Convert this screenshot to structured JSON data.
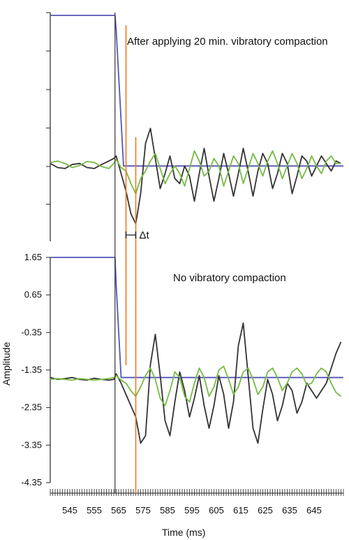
{
  "chart_data": {
    "type": "line",
    "xlabel": "Time (ms)",
    "ylabel": "Amplitude",
    "xlim": [
      537,
      657
    ],
    "x_ticks": [
      545,
      555,
      565,
      575,
      585,
      595,
      605,
      615,
      625,
      635,
      645
    ],
    "y_ticks": [
      1.65,
      0.65,
      -0.35,
      -1.35,
      -2.35,
      -3.35,
      -4.35
    ],
    "y_tick_labels": [
      "1.65",
      "0.65",
      "-0.35",
      "-1.35",
      "-2.35",
      "-3.35",
      "-4.35"
    ],
    "top_panel": {
      "title": "After applying 20 min. vibratory compaction",
      "ylim": [
        -2.85,
        1.65
      ],
      "series": [
        {
          "color": "#5555bb",
          "x": [
            537,
            563.5,
            564,
            567,
            657
          ],
          "y": [
            1.65,
            1.65,
            1.35,
            -1.35,
            -1.35
          ]
        },
        {
          "color": "#333333",
          "x": [
            537,
            540,
            543,
            546,
            549,
            552,
            555,
            558,
            561,
            563,
            564,
            566,
            568,
            570,
            572,
            574,
            576,
            578,
            580,
            582,
            584,
            586,
            588,
            590,
            592,
            594,
            596,
            598,
            600,
            602,
            604,
            606,
            608,
            610,
            612,
            614,
            616,
            618,
            620,
            622,
            624,
            626,
            628,
            630,
            632,
            634,
            636,
            638,
            640,
            642,
            644,
            646,
            648,
            650,
            652,
            654,
            656
          ],
          "y": [
            -1.3,
            -1.38,
            -1.4,
            -1.32,
            -1.3,
            -1.38,
            -1.4,
            -1.32,
            -1.25,
            -1.2,
            -1.15,
            -1.5,
            -1.85,
            -2.3,
            -2.5,
            -1.9,
            -0.9,
            -0.6,
            -1.2,
            -1.8,
            -1.5,
            -1.15,
            -1.6,
            -1.7,
            -1.35,
            -1.55,
            -2.05,
            -1.5,
            -1.0,
            -1.55,
            -2.05,
            -1.6,
            -1.1,
            -1.5,
            -1.95,
            -1.5,
            -1.0,
            -1.45,
            -1.95,
            -1.45,
            -1.1,
            -1.3,
            -1.8,
            -1.5,
            -1.1,
            -1.3,
            -1.9,
            -1.55,
            -1.15,
            -1.25,
            -1.55,
            -1.35,
            -1.15,
            -1.3,
            -1.45,
            -1.25,
            -1.3
          ]
        },
        {
          "color": "#77bb44",
          "x": [
            537,
            540,
            543,
            546,
            549,
            552,
            555,
            558,
            561,
            563,
            564,
            566,
            568,
            570,
            572,
            574,
            576,
            578,
            580,
            582,
            584,
            586,
            588,
            590,
            592,
            594,
            596,
            598,
            600,
            602,
            604,
            606,
            608,
            610,
            612,
            614,
            616,
            618,
            620,
            622,
            624,
            626,
            628,
            630,
            632,
            634,
            636,
            638,
            640,
            642,
            644,
            646,
            648,
            650,
            652,
            654,
            656
          ],
          "y": [
            -1.28,
            -1.25,
            -1.3,
            -1.38,
            -1.34,
            -1.26,
            -1.28,
            -1.36,
            -1.4,
            -1.3,
            -1.22,
            -1.38,
            -1.45,
            -1.7,
            -1.9,
            -1.6,
            -1.45,
            -1.25,
            -1.1,
            -1.4,
            -1.7,
            -1.5,
            -1.35,
            -1.5,
            -1.75,
            -1.4,
            -1.05,
            -1.25,
            -1.55,
            -1.45,
            -1.2,
            -1.35,
            -1.75,
            -1.45,
            -1.15,
            -1.3,
            -1.7,
            -1.4,
            -1.1,
            -1.3,
            -1.55,
            -1.25,
            -1.05,
            -1.3,
            -1.6,
            -1.35,
            -1.1,
            -1.3,
            -1.6,
            -1.4,
            -1.15,
            -1.35,
            -1.5,
            -1.25,
            -1.15,
            -1.3,
            -1.3
          ]
        }
      ]
    },
    "bottom_panel": {
      "title": "No vibratory compaction",
      "ylim": [
        -4.35,
        1.65
      ],
      "series": [
        {
          "color": "#5555bb",
          "x": [
            537,
            563.5,
            564,
            566,
            657
          ],
          "y": [
            1.65,
            1.65,
            0.9,
            -1.55,
            -1.55
          ]
        },
        {
          "color": "#333333",
          "x": [
            537,
            540,
            543,
            546,
            549,
            552,
            555,
            558,
            561,
            563,
            564,
            566,
            568,
            570,
            572,
            574,
            576,
            578,
            580,
            582,
            584,
            586,
            588,
            590,
            592,
            594,
            596,
            598,
            600,
            602,
            604,
            606,
            608,
            610,
            612,
            614,
            616,
            618,
            620,
            622,
            624,
            626,
            628,
            630,
            632,
            634,
            636,
            638,
            640,
            642,
            644,
            646,
            648,
            650,
            652,
            654,
            656
          ],
          "y": [
            -1.55,
            -1.6,
            -1.58,
            -1.55,
            -1.6,
            -1.62,
            -1.57,
            -1.6,
            -1.62,
            -1.6,
            -1.45,
            -1.7,
            -2.0,
            -2.3,
            -2.6,
            -3.3,
            -3.1,
            -1.2,
            -0.4,
            -1.5,
            -2.7,
            -3.1,
            -2.2,
            -1.4,
            -1.9,
            -2.6,
            -2.1,
            -1.5,
            -2.3,
            -2.9,
            -2.3,
            -1.5,
            -2.0,
            -2.9,
            -2.2,
            -0.7,
            -0.1,
            -1.5,
            -2.9,
            -3.3,
            -2.4,
            -1.6,
            -2.0,
            -2.7,
            -2.3,
            -1.7,
            -1.9,
            -2.5,
            -2.2,
            -1.7,
            -1.9,
            -2.1,
            -1.9,
            -1.7,
            -1.3,
            -0.9,
            -0.6
          ]
        },
        {
          "color": "#77bb44",
          "x": [
            537,
            540,
            543,
            546,
            549,
            552,
            555,
            558,
            561,
            563,
            564,
            566,
            568,
            570,
            572,
            574,
            576,
            578,
            580,
            582,
            584,
            586,
            588,
            590,
            592,
            594,
            596,
            598,
            600,
            602,
            604,
            606,
            608,
            610,
            612,
            614,
            616,
            618,
            620,
            622,
            624,
            626,
            628,
            630,
            632,
            634,
            636,
            638,
            640,
            642,
            644,
            646,
            648,
            650,
            652,
            654,
            656
          ],
          "y": [
            -1.6,
            -1.58,
            -1.6,
            -1.62,
            -1.58,
            -1.6,
            -1.62,
            -1.6,
            -1.58,
            -1.55,
            -1.5,
            -1.62,
            -1.7,
            -1.9,
            -2.05,
            -1.8,
            -1.5,
            -1.3,
            -1.6,
            -2.1,
            -2.3,
            -1.9,
            -1.4,
            -1.55,
            -2.05,
            -2.2,
            -1.7,
            -1.3,
            -1.55,
            -2.05,
            -1.8,
            -1.35,
            -1.25,
            -1.6,
            -2.0,
            -1.8,
            -1.4,
            -1.3,
            -1.6,
            -2.0,
            -1.8,
            -1.4,
            -1.3,
            -1.55,
            -1.9,
            -1.7,
            -1.4,
            -1.3,
            -1.45,
            -1.75,
            -1.7,
            -1.45,
            -1.3,
            -1.4,
            -1.7,
            -1.95,
            -2.05
          ]
        }
      ]
    },
    "markers": {
      "lines_color": "#f07820",
      "marker_x": [
        568,
        572
      ],
      "delta_label": "Δt"
    }
  }
}
